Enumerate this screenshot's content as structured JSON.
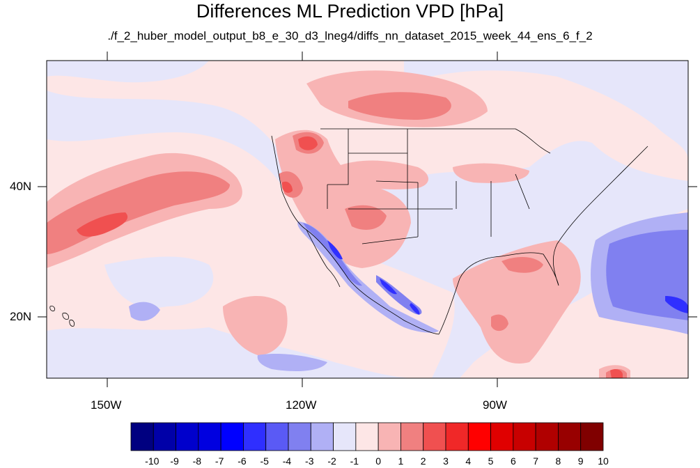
{
  "title": "Differences ML Prediction VPD [hPa]",
  "subtitle": "./f_2_huber_model_output_b8_e_30_d3_lneg4/diffs_nn_dataset_2015_week_44_ens_6_f_2",
  "axes": {
    "lon_labels": [
      "150W",
      "120W",
      "90W"
    ],
    "lat_labels": [
      "40N",
      "20N"
    ]
  },
  "colorbar": {
    "labels": [
      "-10",
      "-9",
      "-8",
      "-7",
      "-6",
      "-5",
      "-4",
      "-3",
      "-2",
      "-1",
      "0",
      "1",
      "2",
      "3",
      "4",
      "5",
      "6",
      "7",
      "8",
      "9",
      "10"
    ],
    "colors": [
      "#000080",
      "#0000a8",
      "#0000cc",
      "#0000e0",
      "#0000ff",
      "#2f2fff",
      "#5a5af5",
      "#8080f0",
      "#b0b0f5",
      "#e6e6fa",
      "#fde6e6",
      "#f8b4b4",
      "#f08080",
      "#f05050",
      "#f02828",
      "#ff0000",
      "#e00000",
      "#c80000",
      "#b00000",
      "#980000",
      "#800000"
    ]
  },
  "colors": {
    "background_field": "#fde6e6",
    "coast": "#000000"
  }
}
